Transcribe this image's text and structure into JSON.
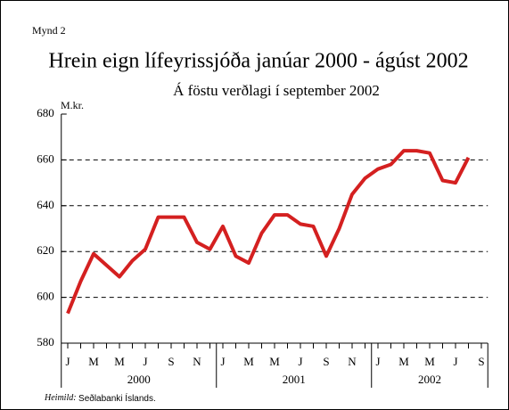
{
  "chart_data": {
    "type": "line",
    "figure_label": "Mynd 2",
    "title": "Hrein eign lífeyrissjóða janúar 2000 - ágúst 2002",
    "subtitle": "Á föstu verðlagi í september 2002",
    "y_axis_label": "M.kr.",
    "source_label": "Heimild:",
    "source": "Seðlabanki Íslands.",
    "categories": [
      "J",
      null,
      "M",
      null,
      "M",
      null,
      "J",
      null,
      "S",
      null,
      "N",
      null,
      "J",
      null,
      "M",
      null,
      "M",
      null,
      "J",
      null,
      "S",
      null,
      "N",
      null,
      "J",
      null,
      "M",
      null,
      "M",
      null,
      "J",
      null,
      "S"
    ],
    "years": [
      "2000",
      "2001",
      "2002"
    ],
    "series": [
      {
        "name": "Hrein eign",
        "color": "#d42020",
        "values": [
          593,
          607,
          619,
          614,
          609,
          616,
          621,
          635,
          635,
          635,
          624,
          621,
          631,
          618,
          615,
          628,
          636,
          636,
          632,
          631,
          618,
          630,
          645,
          652,
          656,
          658,
          664,
          664,
          663,
          651,
          650,
          661,
          null
        ]
      }
    ],
    "ylim": [
      580,
      680
    ],
    "yticks": [
      580,
      600,
      620,
      640,
      660,
      680
    ],
    "grid": true
  }
}
